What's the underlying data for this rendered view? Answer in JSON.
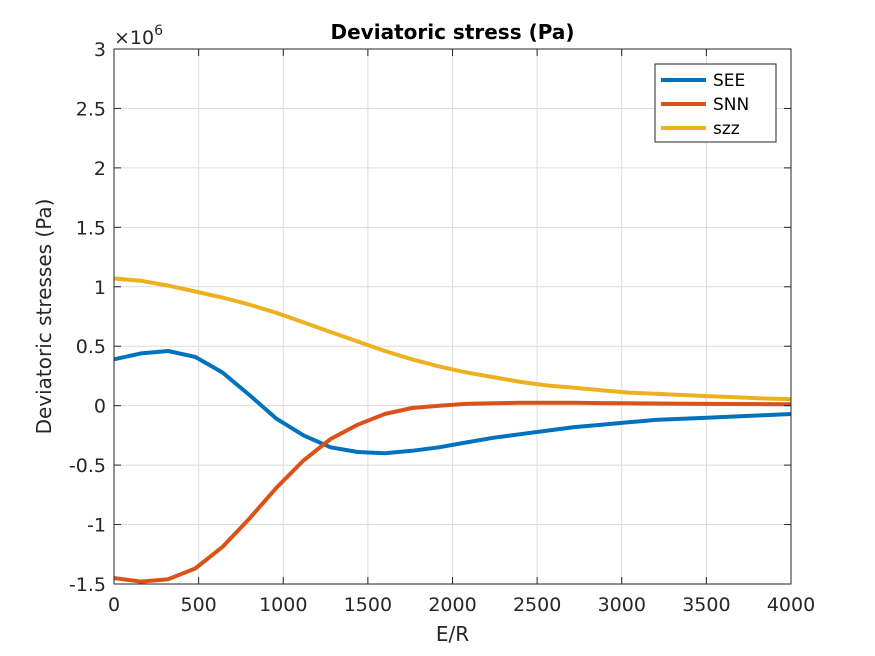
{
  "chart_data": {
    "type": "line",
    "title": "Deviatoric stress (Pa)",
    "xlabel": "E/R",
    "ylabel": "Deviatoric stresses (Pa)",
    "xlim": [
      0,
      4000
    ],
    "ylim": [
      -1.5,
      3
    ],
    "y_multiplier": {
      "base": "×10",
      "exponent": "6"
    },
    "xticks": [
      "0",
      "500",
      "1000",
      "1500",
      "2000",
      "2500",
      "3000",
      "3500",
      "4000"
    ],
    "yticks": [
      "-1.5",
      "-1",
      "-0.5",
      "0",
      "0.5",
      "1",
      "1.5",
      "2",
      "2.5",
      "3"
    ],
    "grid": true,
    "legend_position": "top-right",
    "x": [
      0,
      160,
      320,
      480,
      640,
      800,
      960,
      1120,
      1280,
      1440,
      1600,
      1760,
      1920,
      2080,
      2240,
      2400,
      2560,
      2720,
      2880,
      3040,
      3200,
      3360,
      3520,
      3680,
      3840,
      4000
    ],
    "series": [
      {
        "name": "SEE",
        "color": "#0072BD",
        "values": [
          0.39,
          0.44,
          0.46,
          0.41,
          0.28,
          0.09,
          -0.11,
          -0.25,
          -0.35,
          -0.39,
          -0.4,
          -0.38,
          -0.35,
          -0.31,
          -0.27,
          -0.24,
          -0.21,
          -0.18,
          -0.16,
          -0.14,
          -0.12,
          -0.11,
          -0.1,
          -0.09,
          -0.08,
          -0.07
        ]
      },
      {
        "name": "SNN",
        "color": "#D95319",
        "values": [
          -1.45,
          -1.48,
          -1.46,
          -1.37,
          -1.19,
          -0.95,
          -0.69,
          -0.46,
          -0.28,
          -0.16,
          -0.07,
          -0.02,
          0.0,
          0.015,
          0.02,
          0.025,
          0.025,
          0.025,
          0.022,
          0.02,
          0.018,
          0.016,
          0.015,
          0.014,
          0.013,
          0.012
        ]
      },
      {
        "name": "szz",
        "color": "#EDB120",
        "values": [
          1.07,
          1.05,
          1.01,
          0.96,
          0.91,
          0.85,
          0.78,
          0.7,
          0.62,
          0.54,
          0.46,
          0.39,
          0.33,
          0.28,
          0.24,
          0.2,
          0.17,
          0.15,
          0.13,
          0.11,
          0.1,
          0.09,
          0.08,
          0.07,
          0.06,
          0.055
        ]
      }
    ]
  }
}
